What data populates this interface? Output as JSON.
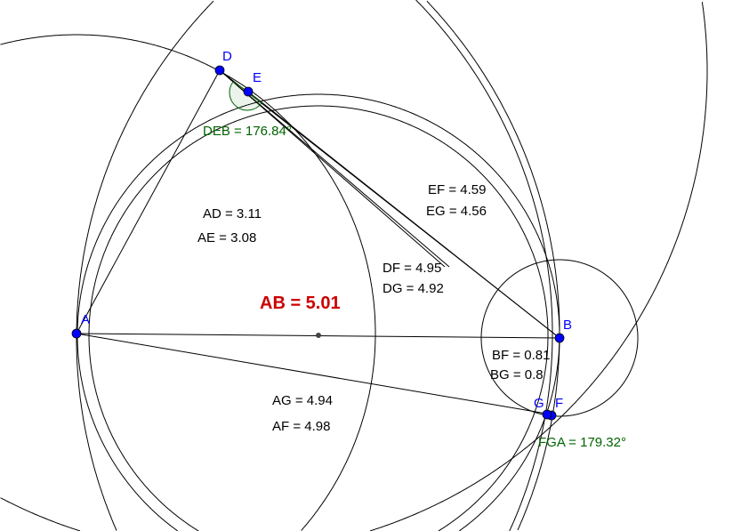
{
  "points": {
    "A": "A",
    "B": "B",
    "D": "D",
    "E": "E",
    "F": "F",
    "G": "G"
  },
  "measurements": {
    "AB": "AB = 5.01",
    "AD": "AD = 3.11",
    "AE": "AE = 3.08",
    "EF": "EF = 4.59",
    "EG": "EG = 4.56",
    "DF": "DF = 4.95",
    "DG": "DG = 4.92",
    "BF": "BF = 0.81",
    "BG": "BG = 0.8",
    "AG": "AG = 4.94",
    "AF": "AF = 4.98"
  },
  "angles": {
    "DEB": "DEB = 176.84°",
    "FGA": "FGA = 179.32°"
  },
  "colors": {
    "point": "#0000ff",
    "angle": "#006400",
    "highlight": "#cc0000",
    "line": "#000000"
  }
}
